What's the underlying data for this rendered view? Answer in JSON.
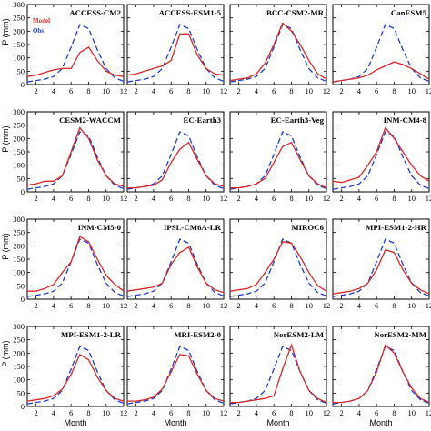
{
  "chart_data": {
    "type": "line",
    "xlabel": "Month",
    "ylabel": "P (mm)",
    "xlim": [
      1,
      12
    ],
    "ylim": [
      0,
      300
    ],
    "xticks": [
      2,
      4,
      6,
      8,
      10,
      12
    ],
    "yticks": [
      0,
      50,
      100,
      150,
      200,
      250,
      300
    ],
    "grid": false,
    "legend": {
      "position": "top-left",
      "entries": [
        {
          "name": "Model",
          "color": "#d62728",
          "style": "solid"
        },
        {
          "name": "Obs",
          "color": "#1f3cc8",
          "style": "dashed"
        }
      ]
    },
    "obs": {
      "name": "Obs",
      "x": [
        1,
        2,
        3,
        4,
        5,
        6,
        7,
        8,
        9,
        10,
        11,
        12
      ],
      "values": [
        10,
        15,
        20,
        30,
        60,
        140,
        225,
        210,
        130,
        60,
        25,
        12
      ]
    },
    "panels": [
      {
        "title": "ACCESS-CM2",
        "model": [
          30,
          35,
          45,
          55,
          60,
          60,
          120,
          140,
          90,
          50,
          35,
          30
        ]
      },
      {
        "title": "ACCESS-ESM1-5",
        "model": [
          35,
          40,
          50,
          60,
          70,
          90,
          190,
          190,
          110,
          60,
          40,
          35
        ]
      },
      {
        "title": "BCC-CSM2-MR",
        "model": [
          15,
          20,
          25,
          40,
          80,
          150,
          230,
          200,
          150,
          90,
          40,
          20
        ]
      },
      {
        "title": "CanESM5",
        "model": [
          10,
          15,
          20,
          25,
          35,
          55,
          70,
          85,
          75,
          60,
          40,
          20
        ]
      },
      {
        "title": "CESM2-WACCM",
        "model": [
          25,
          30,
          40,
          40,
          60,
          150,
          240,
          200,
          120,
          60,
          30,
          20
        ]
      },
      {
        "title": "EC-Earth3",
        "model": [
          15,
          15,
          20,
          25,
          45,
          110,
          160,
          185,
          120,
          60,
          30,
          20
        ]
      },
      {
        "title": "EC-Earth3-Veg",
        "model": [
          15,
          15,
          20,
          30,
          50,
          110,
          170,
          185,
          120,
          60,
          30,
          15
        ]
      },
      {
        "title": "INM-CM4-8",
        "model": [
          40,
          35,
          45,
          55,
          100,
          150,
          240,
          200,
          150,
          100,
          60,
          40
        ]
      },
      {
        "title": "INM-CM5-0",
        "model": [
          30,
          30,
          40,
          55,
          100,
          140,
          235,
          215,
          150,
          90,
          55,
          30
        ]
      },
      {
        "title": "IPSL-CM6A-LR",
        "model": [
          30,
          35,
          40,
          45,
          60,
          130,
          175,
          195,
          120,
          60,
          35,
          25
        ]
      },
      {
        "title": "MIROC6",
        "model": [
          30,
          35,
          40,
          55,
          100,
          150,
          215,
          210,
          160,
          100,
          50,
          30
        ]
      },
      {
        "title": "MPI-ESM1-2-HR",
        "model": [
          20,
          25,
          30,
          40,
          60,
          110,
          185,
          175,
          110,
          60,
          35,
          20
        ]
      },
      {
        "title": "MPI-ESM1-2-LR",
        "model": [
          20,
          25,
          30,
          40,
          65,
          120,
          195,
          175,
          110,
          60,
          30,
          20
        ]
      },
      {
        "title": "MRI-ESM2-0",
        "model": [
          20,
          20,
          25,
          35,
          65,
          130,
          195,
          190,
          120,
          60,
          30,
          20
        ]
      },
      {
        "title": "NorESM2-LM",
        "model": [
          15,
          15,
          20,
          25,
          30,
          40,
          140,
          230,
          130,
          60,
          30,
          15
        ]
      },
      {
        "title": "NorESM2-MM",
        "model": [
          15,
          15,
          20,
          30,
          60,
          130,
          230,
          200,
          130,
          70,
          30,
          15
        ]
      }
    ],
    "colors": {
      "model": "#d62728",
      "obs": "#1f3cc8"
    }
  }
}
